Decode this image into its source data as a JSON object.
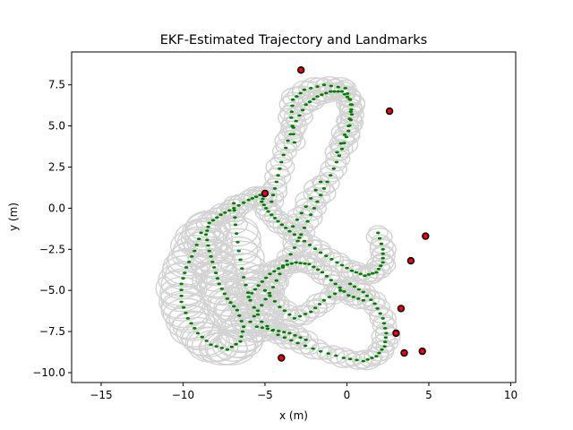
{
  "chart_data": {
    "type": "scatter",
    "title": "EKF-Estimated Trajectory and Landmarks",
    "xlabel": "x (m)",
    "ylabel": "y (m)",
    "xlim": [
      -16.8,
      10.3
    ],
    "ylim": [
      -10.6,
      9.5
    ],
    "xticks": [
      -15,
      -10,
      -5,
      0,
      5,
      10
    ],
    "xtick_labels": [
      "−15",
      "−10",
      "−5",
      "0",
      "5",
      "10"
    ],
    "yticks": [
      -10.0,
      -7.5,
      -5.0,
      -2.5,
      0.0,
      2.5,
      5.0,
      7.5
    ],
    "ytick_labels": [
      "−10.0",
      "−7.5",
      "−5.0",
      "−2.5",
      "0.0",
      "2.5",
      "5.0",
      "7.5"
    ],
    "grid": false,
    "colors": {
      "trajectory": "#008000",
      "uncertainty": "#d3d3d3",
      "landmark": "#ff0000",
      "landmark_edge": "#000000"
    },
    "trajectory": [
      [
        -5.0,
        0.9
      ],
      [
        -5.2,
        0.4
      ],
      [
        -4.8,
        -0.2
      ],
      [
        -4.2,
        -0.8
      ],
      [
        -3.5,
        -1.4
      ],
      [
        -2.6,
        -2.0
      ],
      [
        -1.6,
        -2.7
      ],
      [
        -0.6,
        -3.3
      ],
      [
        0.3,
        -3.8
      ],
      [
        1.1,
        -4.1
      ],
      [
        1.8,
        -3.9
      ],
      [
        2.2,
        -3.3
      ],
      [
        2.2,
        -2.5
      ],
      [
        1.9,
        -1.5
      ],
      [
        -4.6,
        0.4
      ],
      [
        -4.3,
        1.6
      ],
      [
        -4.0,
        2.8
      ],
      [
        -3.6,
        4.1
      ],
      [
        -3.1,
        5.3
      ],
      [
        -2.5,
        6.3
      ],
      [
        -1.8,
        6.8
      ],
      [
        -1.0,
        7.1
      ],
      [
        -0.3,
        7.1
      ],
      [
        0.2,
        6.6
      ],
      [
        0.3,
        5.7
      ],
      [
        0.1,
        4.7
      ],
      [
        -0.3,
        3.6
      ],
      [
        -0.8,
        2.4
      ],
      [
        -1.4,
        1.2
      ],
      [
        -2.0,
        0.0
      ],
      [
        -2.6,
        -1.2
      ],
      [
        -3.2,
        -2.4
      ],
      [
        -3.9,
        -3.6
      ],
      [
        -4.5,
        -4.8
      ],
      [
        -5.2,
        -5.9
      ],
      [
        -5.9,
        -6.9
      ],
      [
        -3.2,
        4.0
      ],
      [
        -3.4,
        5.5
      ],
      [
        -3.3,
        6.6
      ],
      [
        -2.6,
        7.2
      ],
      [
        -1.4,
        7.5
      ],
      [
        -0.1,
        7.3
      ],
      [
        0.3,
        6.3
      ],
      [
        0.1,
        5.0
      ],
      [
        -0.6,
        3.4
      ],
      [
        -1.6,
        1.6
      ],
      [
        -2.5,
        0.1
      ],
      [
        -3.3,
        -1.1
      ],
      [
        -6.9,
        0.3
      ],
      [
        -6.8,
        -1.0
      ],
      [
        -6.6,
        -2.6
      ],
      [
        -6.3,
        -4.2
      ],
      [
        -5.9,
        -5.6
      ],
      [
        -5.2,
        -6.9
      ],
      [
        -4.2,
        -7.7
      ],
      [
        -3.0,
        -8.2
      ],
      [
        -1.6,
        -8.7
      ],
      [
        -0.2,
        -9.1
      ],
      [
        1.0,
        -9.3
      ],
      [
        1.8,
        -9.0
      ],
      [
        2.3,
        -8.4
      ],
      [
        2.4,
        -7.6
      ],
      [
        2.2,
        -6.7
      ],
      [
        1.7,
        -5.8
      ],
      [
        1.0,
        -5.1
      ],
      [
        0.2,
        -4.6
      ],
      [
        -5.5,
        -7.2
      ],
      [
        -4.5,
        -7.4
      ],
      [
        -3.5,
        -7.6
      ],
      [
        -2.5,
        -8.0
      ],
      [
        -8.9,
        -1.5
      ],
      [
        -9.3,
        -2.6
      ],
      [
        -9.8,
        -3.6
      ],
      [
        -10.1,
        -4.6
      ],
      [
        -10.1,
        -5.7
      ],
      [
        -9.7,
        -6.7
      ],
      [
        -9.1,
        -7.6
      ],
      [
        -8.3,
        -8.3
      ],
      [
        -7.3,
        -8.6
      ],
      [
        -6.5,
        -8.1
      ],
      [
        -6.3,
        -7.2
      ],
      [
        -6.7,
        -6.2
      ],
      [
        -7.3,
        -5.5
      ],
      [
        -7.8,
        -4.6
      ],
      [
        -8.1,
        -3.6
      ],
      [
        -8.4,
        -2.6
      ],
      [
        -8.6,
        -1.6
      ],
      [
        -8.4,
        -0.9
      ],
      [
        -7.7,
        -0.4
      ],
      [
        -6.9,
        0.0
      ],
      [
        -6.0,
        0.5
      ],
      [
        -5.3,
        0.8
      ],
      [
        -6.0,
        -5.4
      ],
      [
        -5.4,
        -4.7
      ],
      [
        -4.7,
        -4.0
      ],
      [
        -3.9,
        -3.5
      ],
      [
        -3.1,
        -3.3
      ],
      [
        -2.3,
        -3.4
      ],
      [
        -1.5,
        -3.9
      ],
      [
        -0.7,
        -4.6
      ],
      [
        0.1,
        -5.3
      ],
      [
        1.0,
        -5.6
      ],
      [
        -5.0,
        -5.0
      ],
      [
        -4.1,
        -6.0
      ],
      [
        -3.2,
        -6.7
      ],
      [
        -2.2,
        -6.3
      ],
      [
        -1.4,
        -5.6
      ],
      [
        -0.4,
        -5.0
      ]
    ],
    "landmarks": [
      [
        -2.8,
        8.4
      ],
      [
        2.6,
        5.9
      ],
      [
        -5.0,
        0.9
      ],
      [
        4.8,
        -1.7
      ],
      [
        3.9,
        -3.2
      ],
      [
        3.3,
        -6.1
      ],
      [
        3.0,
        -7.6
      ],
      [
        4.6,
        -8.7
      ],
      [
        3.5,
        -8.8
      ],
      [
        -4.0,
        -9.1
      ]
    ]
  }
}
